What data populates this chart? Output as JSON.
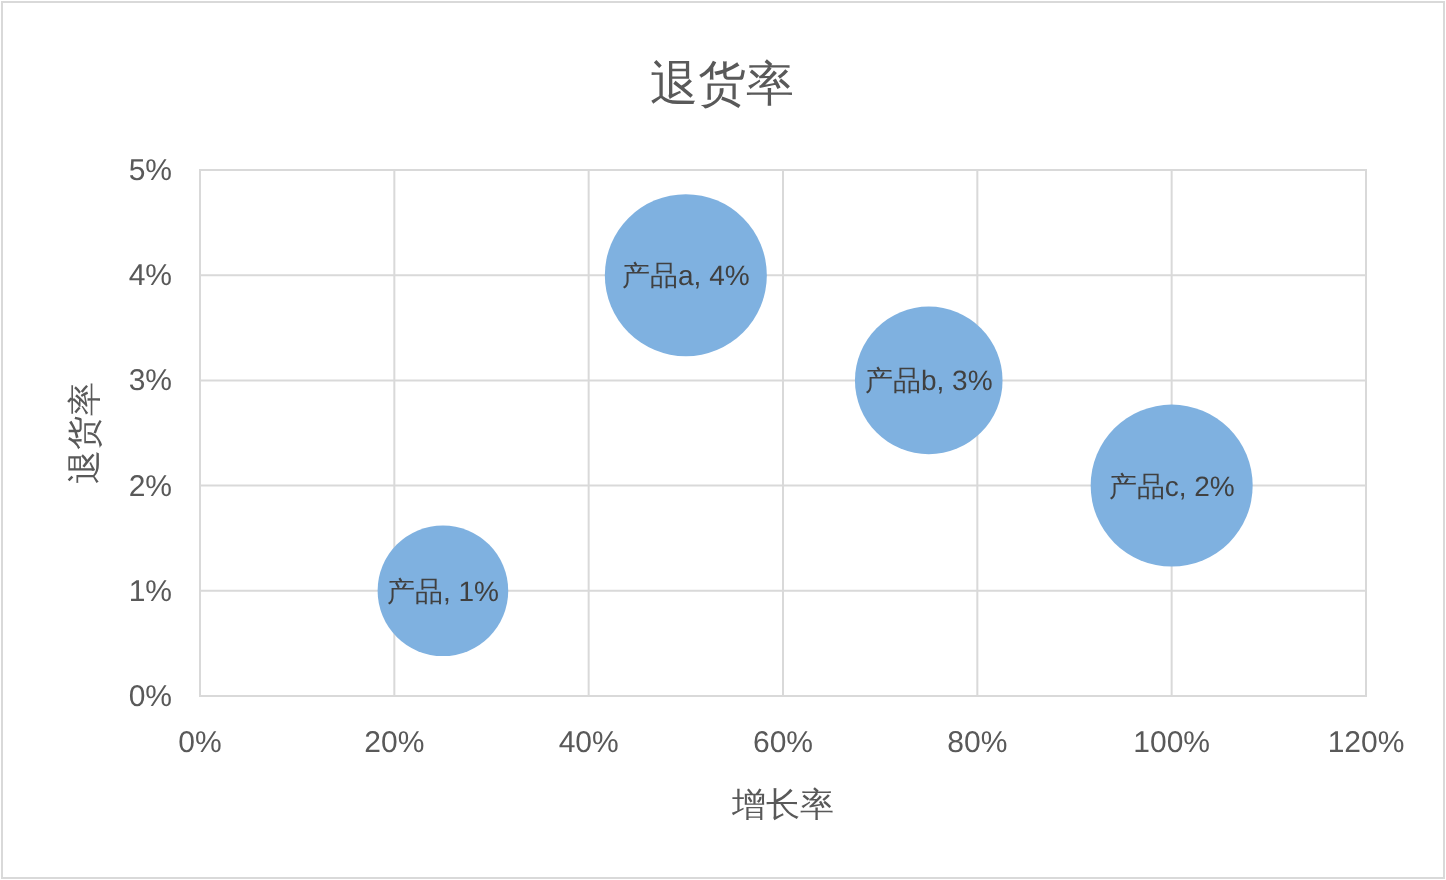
{
  "chart_data": {
    "type": "bubble",
    "title": "退货率",
    "xlabel": "增长率",
    "ylabel": "退货率",
    "x": [
      25,
      50,
      75,
      100
    ],
    "values": [
      1,
      4,
      3,
      2
    ],
    "sizes": [
      0.65,
      1,
      0.83,
      1
    ],
    "value_labels": [
      "产品, 1%",
      "产品a, 4%",
      "产品b, 3%",
      "产品c, 2%"
    ],
    "color": "#7fb1e0",
    "xlim": [
      0,
      120
    ],
    "ylim": [
      0,
      5
    ],
    "xticks": [
      {
        "value": 0,
        "label": "0%"
      },
      {
        "value": 20,
        "label": "20%"
      },
      {
        "value": 40,
        "label": "40%"
      },
      {
        "value": 60,
        "label": "60%"
      },
      {
        "value": 80,
        "label": "80%"
      },
      {
        "value": 100,
        "label": "100%"
      },
      {
        "value": 120,
        "label": "120%"
      }
    ],
    "yticks": [
      {
        "value": 0,
        "label": "0%"
      },
      {
        "value": 1,
        "label": "1%"
      },
      {
        "value": 2,
        "label": "2%"
      },
      {
        "value": 3,
        "label": "3%"
      },
      {
        "value": 4,
        "label": "4%"
      },
      {
        "value": 5,
        "label": "5%"
      }
    ],
    "grid": true
  }
}
